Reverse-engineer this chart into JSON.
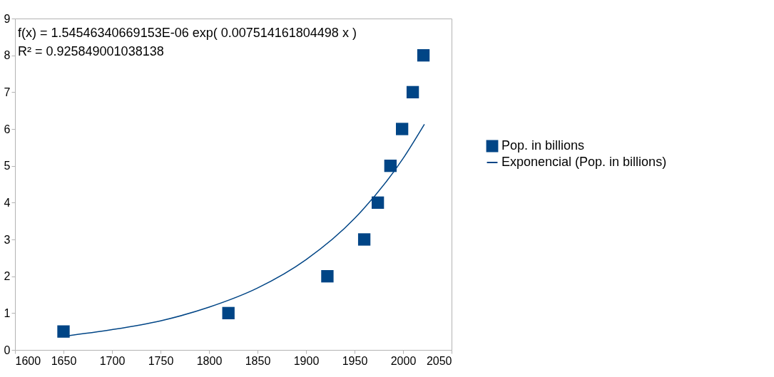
{
  "chart_data": {
    "type": "scatter",
    "marker": "square",
    "legend": "right",
    "grid": false,
    "xlim": [
      1600,
      2050
    ],
    "xticks": [
      1600,
      1650,
      1700,
      1750,
      1800,
      1850,
      1900,
      1950,
      2000,
      2050
    ],
    "ylim": [
      0,
      9
    ],
    "yticks": [
      0,
      1,
      2,
      3,
      4,
      5,
      6,
      7,
      8,
      9
    ],
    "annotations": [
      "f(x) = 1.54546340669153E-06 exp( 0.007514161804498 x )",
      "R² = 0.925849001038138"
    ],
    "series": [
      {
        "name": "Pop. in billions",
        "color": "#004586",
        "x": [
          1650,
          1820,
          1922,
          1960,
          1974,
          1987,
          1999,
          2010,
          2021
        ],
        "values": [
          0.5,
          1,
          2,
          3,
          4,
          5,
          6,
          7,
          8
        ]
      },
      {
        "name": "Exponencial (Pop. in billions)",
        "type": "line",
        "marker": "none",
        "color": "#004586",
        "x": [
          1650,
          1700,
          1750,
          1800,
          1850,
          1900,
          1950,
          2000,
          2022
        ],
        "values": [
          0.37,
          0.55,
          0.79,
          1.16,
          1.68,
          2.45,
          3.57,
          5.2,
          6.13
        ]
      }
    ]
  }
}
